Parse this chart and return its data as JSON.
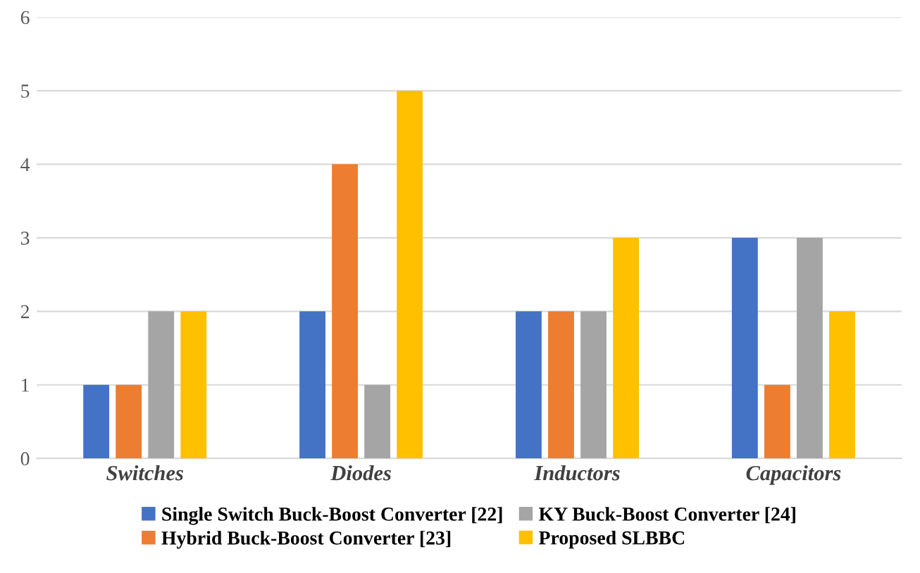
{
  "chart_data": {
    "type": "bar",
    "categories": [
      "Switches",
      "Diodes",
      "Inductors",
      "Capacitors"
    ],
    "series": [
      {
        "name": "Single Switch Buck-Boost Converter [22]",
        "color": "#4472c4",
        "values": [
          1,
          2,
          2,
          3
        ]
      },
      {
        "name": "Hybrid Buck-Boost Converter [23]",
        "color": "#ed7d31",
        "values": [
          1,
          4,
          2,
          1
        ]
      },
      {
        "name": "KY Buck-Boost Converter [24]",
        "color": "#a5a5a5",
        "values": [
          2,
          1,
          2,
          3
        ]
      },
      {
        "name": "Proposed SLBBC",
        "color": "#ffc000",
        "values": [
          2,
          5,
          3,
          2
        ]
      }
    ],
    "ylim": [
      0,
      6
    ],
    "yticks": [
      0,
      1,
      2,
      3,
      4,
      5,
      6
    ],
    "grid": "y",
    "legend": "bottom"
  }
}
